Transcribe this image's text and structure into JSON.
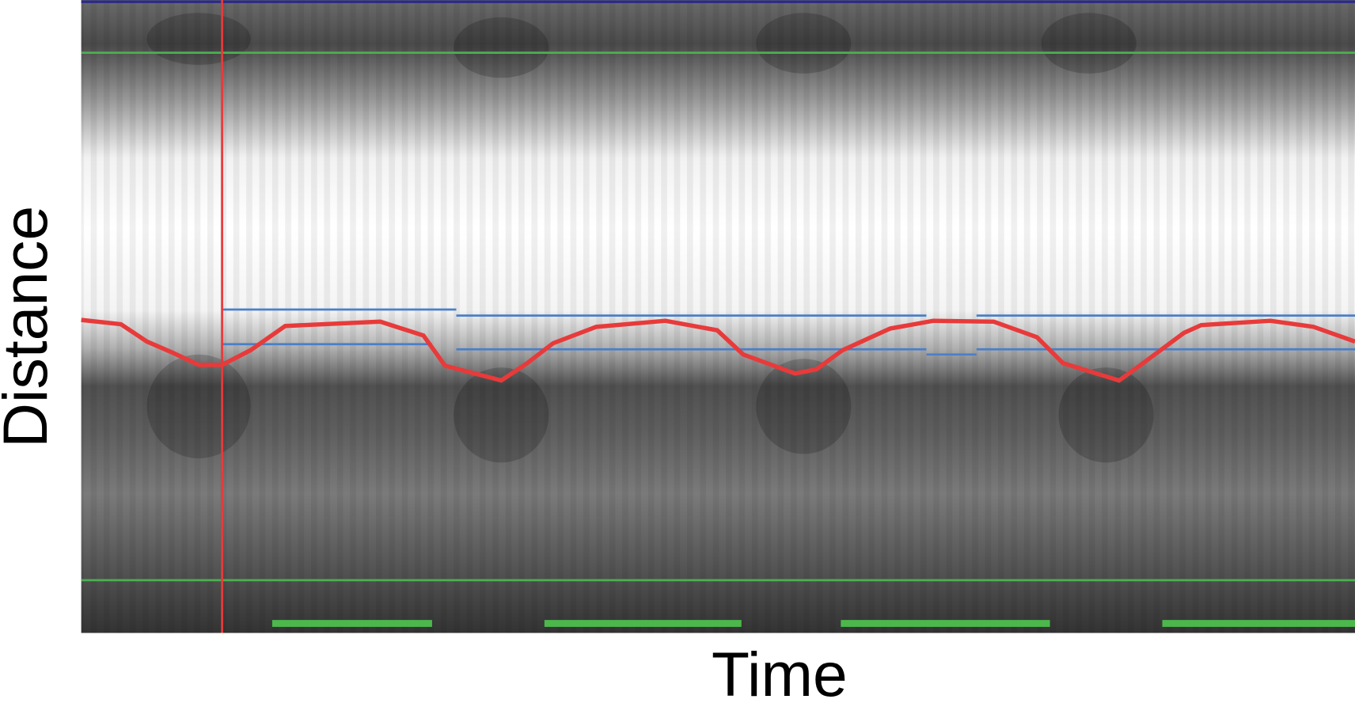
{
  "axes": {
    "y_label": "Distance",
    "x_label": "Time"
  }
}
